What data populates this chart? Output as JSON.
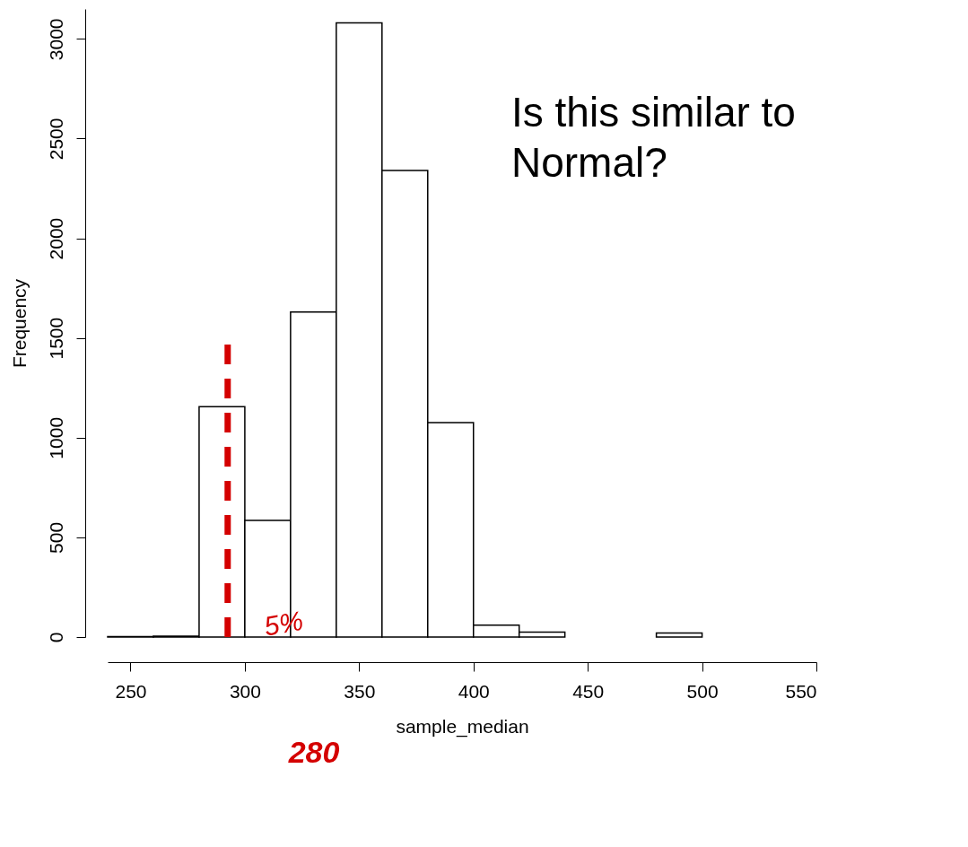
{
  "chart_data": {
    "type": "histogram",
    "xlabel": "sample_median",
    "ylabel": "Frequency",
    "bins": [
      240,
      260,
      280,
      300,
      320,
      340,
      360,
      380,
      400,
      420,
      440,
      460,
      480,
      500,
      520,
      540
    ],
    "values": [
      2,
      5,
      1155,
      585,
      1630,
      3080,
      2340,
      1075,
      60,
      25,
      null,
      null,
      20,
      null,
      null
    ],
    "color": "#ffffff",
    "xlim": [
      240,
      550
    ],
    "xticks": [
      250,
      300,
      350,
      400,
      450,
      500,
      550
    ],
    "ylim": [
      0,
      3150
    ],
    "yticks": [
      0,
      500,
      1000,
      1500,
      2000,
      2500,
      3000
    ],
    "grid": false,
    "ref_lines": [
      {
        "axis": "x",
        "value": 292.5,
        "color": "#d40000",
        "line_style": "dashed"
      }
    ],
    "annotations": [
      "Is this similar to\nNormal?",
      "280",
      "5%"
    ]
  }
}
